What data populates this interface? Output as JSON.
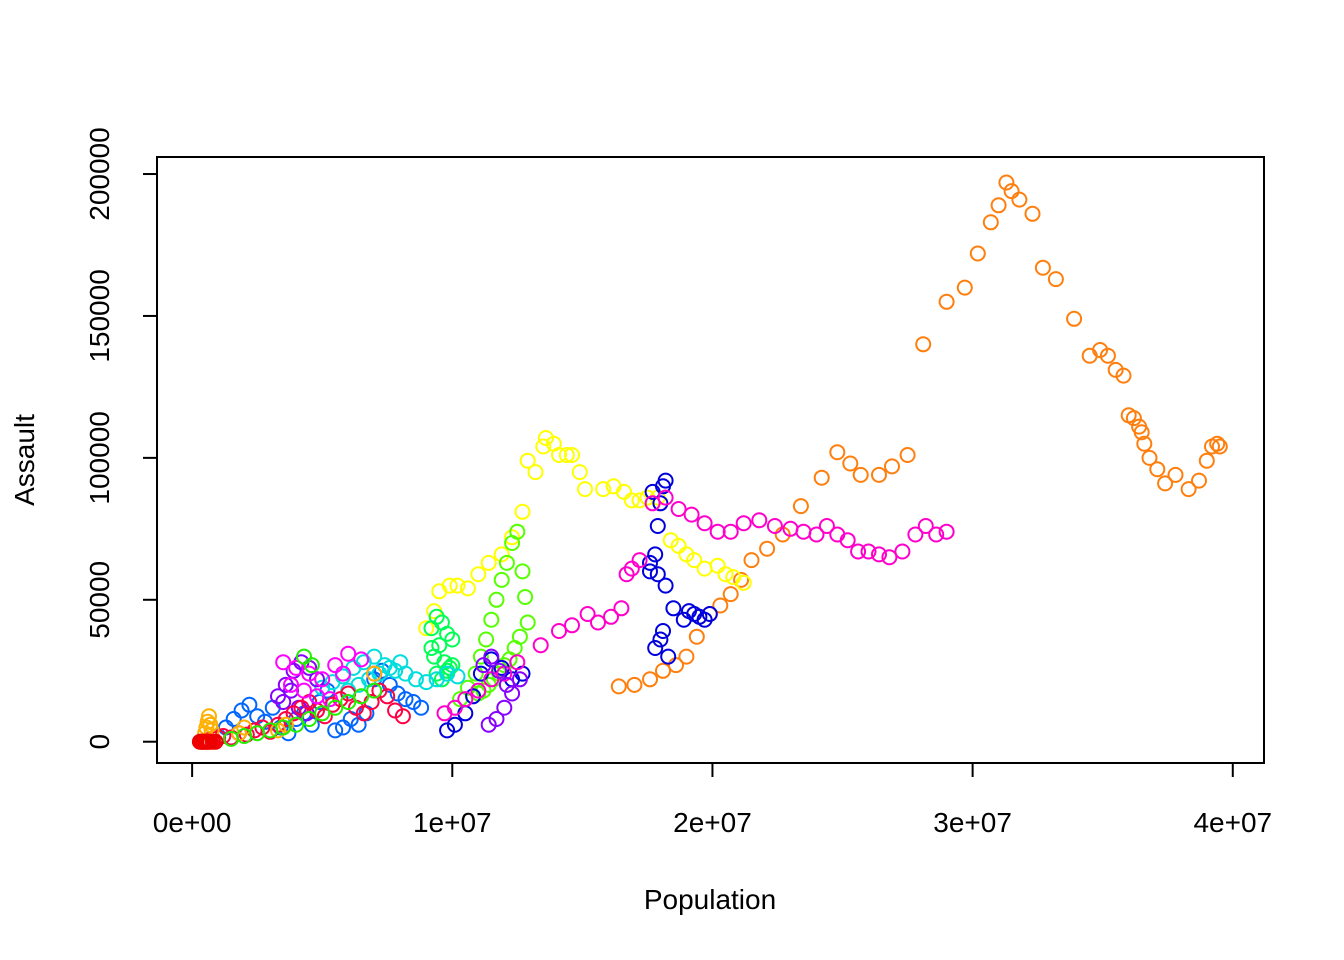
{
  "chart_data": {
    "type": "scatter",
    "title": "",
    "xlabel": "Population",
    "ylabel": "Assault",
    "xlim": [
      -1350000,
      41200000
    ],
    "ylim": [
      -7500,
      206000
    ],
    "x_ticks": [
      0,
      10000000,
      20000000,
      30000000,
      40000000
    ],
    "x_tick_labels": [
      "0e+00",
      "1e+07",
      "2e+07",
      "3e+07",
      "4e+07"
    ],
    "y_ticks": [
      0,
      50000,
      100000,
      150000,
      200000
    ],
    "y_tick_labels": [
      "0",
      "50000",
      "100000",
      "150000",
      "200000"
    ],
    "grid": false,
    "legend": "none",
    "marker": "open circle",
    "series": [
      {
        "color": "#FF7F0E",
        "x": [
          16400000,
          17000000,
          17600000,
          18100000,
          18600000,
          19000000,
          19400000,
          19900000,
          20300000,
          20700000,
          21100000,
          21500000,
          22100000,
          22700000,
          23400000,
          24200000,
          24800000,
          25300000,
          25700000,
          26400000,
          26900000,
          27500000,
          28100000,
          29000000,
          29700000,
          30200000,
          30700000,
          31000000,
          31300000,
          31500000,
          31800000,
          32300000,
          32700000,
          33200000,
          33900000,
          34500000,
          34900000,
          35200000,
          35500000,
          35800000,
          36000000,
          36200000,
          36400000,
          36500000,
          36600000,
          36800000,
          37100000,
          37400000,
          37800000,
          38300000,
          38700000,
          39000000,
          39200000,
          39400000,
          39500000
        ],
        "y": [
          19500,
          20000,
          22000,
          25000,
          27000,
          30000,
          37000,
          45000,
          48000,
          52000,
          57000,
          64000,
          68000,
          73000,
          83000,
          93000,
          102000,
          98000,
          94000,
          94000,
          97000,
          101000,
          140000,
          155000,
          160000,
          172000,
          183000,
          189000,
          197000,
          194000,
          191000,
          186000,
          167000,
          163000,
          149000,
          136000,
          138000,
          136000,
          131000,
          129000,
          115000,
          114000,
          111000,
          109000,
          105000,
          100000,
          96000,
          91000,
          94000,
          89000,
          92000,
          99000,
          104000,
          105000,
          104000
        ]
      },
      {
        "color": "#FFFF00",
        "x": [
          9000000,
          9300000,
          9500000,
          9900000,
          10200000,
          10600000,
          11000000,
          11400000,
          11900000,
          12300000,
          12700000,
          12900000,
          13200000,
          13500000,
          13600000,
          13900000,
          14100000,
          14400000,
          14600000,
          14900000,
          15100000,
          15800000,
          16200000,
          16600000,
          16900000,
          17200000,
          17500000,
          17900000,
          18400000,
          18700000,
          19000000,
          19300000,
          19700000,
          20200000,
          20500000,
          20800000,
          21200000
        ],
        "y": [
          40000,
          46000,
          53000,
          55000,
          55000,
          54000,
          59000,
          63000,
          66000,
          72000,
          81000,
          99000,
          95000,
          104000,
          107000,
          105000,
          101000,
          101000,
          101000,
          95000,
          89000,
          89000,
          90000,
          88000,
          85000,
          85000,
          86000,
          86000,
          71000,
          69000,
          66000,
          64000,
          61000,
          62000,
          59000,
          58000,
          56000
        ]
      },
      {
        "color": "#00FF55",
        "x": [
          9200000,
          9400000,
          9600000,
          9800000,
          10000000,
          9500000,
          9300000,
          9700000,
          9900000,
          9400000,
          9600000,
          9800000,
          10000000,
          9200000
        ],
        "y": [
          40000,
          44000,
          42000,
          38000,
          36000,
          34000,
          30000,
          28000,
          26000,
          24000,
          22000,
          25000,
          27000,
          33000
        ]
      },
      {
        "color": "#55FF00",
        "x": [
          10300000,
          10600000,
          10900000,
          11100000,
          11300000,
          11500000,
          11700000,
          11900000,
          12100000,
          12300000,
          12500000,
          12700000,
          12800000,
          12900000,
          12600000,
          12400000,
          12200000,
          12000000,
          11800000,
          11600000,
          11400000,
          11200000,
          11000000
        ],
        "y": [
          15000,
          19000,
          24000,
          30000,
          36000,
          43000,
          50000,
          57000,
          63000,
          70000,
          74000,
          60000,
          51000,
          42000,
          37000,
          33000,
          29000,
          27000,
          24000,
          22000,
          20000,
          18000,
          17000
        ]
      },
      {
        "color": "#0000DD",
        "x": [
          9800000,
          10100000,
          10500000,
          10800000,
          11100000,
          11500000,
          11900000,
          12300000,
          12700000,
          17600000,
          17800000,
          17900000,
          18000000,
          18100000,
          18200000,
          17700000,
          17600000,
          17900000,
          18200000,
          18500000,
          18900000,
          19100000,
          19300000,
          19500000,
          19700000,
          19900000,
          18000000,
          17800000,
          18300000,
          18100000
        ],
        "y": [
          4000,
          6000,
          10000,
          16000,
          24000,
          29000,
          26000,
          22000,
          24000,
          60000,
          66000,
          76000,
          84000,
          90000,
          92000,
          88000,
          63000,
          59000,
          55000,
          47000,
          43000,
          46000,
          45000,
          44000,
          43000,
          45000,
          36000,
          33000,
          30000,
          39000
        ]
      },
      {
        "color": "#FF00CC",
        "x": [
          9700000,
          10100000,
          10500000,
          11000000,
          11500000,
          12000000,
          12500000,
          13400000,
          14100000,
          14600000,
          15200000,
          15600000,
          16100000,
          16500000,
          16700000,
          16900000,
          17200000,
          17700000,
          18200000,
          18700000,
          19200000,
          19700000,
          20200000,
          20700000,
          21200000,
          21800000,
          22400000,
          23000000,
          23500000,
          24000000,
          24400000,
          24800000,
          25200000,
          25600000,
          26000000,
          26400000,
          26800000,
          27300000,
          27800000,
          28200000,
          28600000,
          29000000
        ],
        "y": [
          10000,
          12000,
          15000,
          18000,
          22000,
          24000,
          28000,
          34000,
          39000,
          41000,
          45000,
          42000,
          44000,
          47000,
          59000,
          61000,
          64000,
          84000,
          86000,
          82000,
          80000,
          77000,
          74000,
          74000,
          77000,
          78000,
          76000,
          75000,
          74000,
          73000,
          76000,
          73000,
          71000,
          67000,
          67000,
          66000,
          65000,
          67000,
          73000,
          76000,
          73000,
          74000
        ]
      },
      {
        "color": "#0066FF",
        "x": [
          1000000,
          1300000,
          1600000,
          1900000,
          2200000,
          2500000,
          2800000,
          3100000,
          3400000,
          3700000,
          4000000,
          4300000,
          4600000,
          4900000,
          5200000,
          5500000,
          5800000,
          6100000,
          6400000,
          6700000,
          7000000,
          7300000,
          7600000,
          7900000,
          8200000,
          8500000,
          8800000
        ],
        "y": [
          2000,
          5000,
          8000,
          11000,
          13000,
          9000,
          7000,
          12000,
          5000,
          3000,
          8000,
          10000,
          6000,
          14000,
          18000,
          4000,
          5000,
          8000,
          6000,
          10000,
          22000,
          25000,
          20000,
          17000,
          15000,
          14000,
          12000
        ]
      },
      {
        "color": "#00DDDD",
        "x": [
          5000000,
          5400000,
          5800000,
          6200000,
          6600000,
          7000000,
          7400000,
          7800000,
          8200000,
          8600000,
          9000000,
          9400000,
          9800000,
          10200000,
          6000000,
          6400000,
          6800000,
          7200000,
          7600000,
          8000000
        ],
        "y": [
          19000,
          21000,
          23000,
          26000,
          28000,
          30000,
          27000,
          25000,
          24000,
          22000,
          21000,
          22000,
          24000,
          23000,
          18000,
          20000,
          22000,
          24000,
          26000,
          28000
        ]
      },
      {
        "color": "#8800FF",
        "x": [
          3300000,
          3600000,
          3900000,
          4200000,
          4500000,
          4800000,
          3500000,
          3800000,
          4100000,
          4400000,
          11400000,
          11700000,
          12000000,
          12300000,
          12600000,
          11200000,
          11500000,
          11800000,
          12100000
        ],
        "y": [
          16000,
          20000,
          25000,
          28000,
          26000,
          22000,
          14000,
          18000,
          12000,
          10000,
          6000,
          8000,
          12000,
          17000,
          22000,
          27000,
          30000,
          25000,
          20000
        ]
      },
      {
        "color": "#FF0044",
        "x": [
          400000,
          600000,
          800000,
          1000000,
          1200000,
          1500000,
          1800000,
          2100000,
          2400000,
          2700000,
          3000000,
          3300000,
          3600000,
          3900000,
          4200000,
          4500000,
          4800000,
          5100000,
          5400000,
          5700000,
          6000000,
          6300000,
          6600000,
          6900000,
          7200000,
          7500000,
          7800000,
          8100000
        ],
        "y": [
          0,
          500,
          1000,
          1500,
          2000,
          1500,
          3000,
          2500,
          4000,
          5000,
          3500,
          6000,
          8000,
          10000,
          12000,
          14000,
          11000,
          9000,
          13000,
          15000,
          17000,
          12000,
          10000,
          14000,
          18000,
          16000,
          11000,
          9000
        ]
      },
      {
        "color": "#FF00FF",
        "x": [
          3500000,
          4000000,
          4500000,
          5000000,
          5500000,
          6000000,
          6500000,
          7000000,
          3800000,
          4300000,
          4800000,
          5300000,
          5800000
        ],
        "y": [
          28000,
          26000,
          24000,
          22000,
          27000,
          31000,
          29000,
          24000,
          20000,
          18000,
          16000,
          15000,
          24000
        ]
      },
      {
        "color": "#FFB000",
        "x": [
          500000,
          550000,
          600000,
          650000,
          700000,
          750000,
          1800000,
          2000000,
          3300000,
          3600000,
          7000000
        ],
        "y": [
          3000,
          5000,
          7000,
          9000,
          6000,
          4000,
          3000,
          5000,
          4000,
          6000,
          24000
        ]
      },
      {
        "color": "#22EE00",
        "x": [
          1500000,
          2000000,
          2500000,
          3000000,
          3500000,
          4000000,
          4500000,
          5000000,
          5500000,
          6000000,
          6500000,
          7000000,
          4300000,
          4600000
        ],
        "y": [
          1000,
          2000,
          3000,
          4000,
          5000,
          6000,
          8000,
          10000,
          12000,
          14000,
          16000,
          18000,
          30000,
          27000
        ]
      },
      {
        "color": "#EE0000",
        "x": [
          300000,
          350000,
          400000,
          450000,
          500000,
          550000,
          600000,
          650000,
          700000,
          800000,
          900000
        ],
        "y": [
          0,
          0,
          0,
          0,
          0,
          0,
          0,
          0,
          0,
          0,
          0
        ]
      }
    ]
  }
}
